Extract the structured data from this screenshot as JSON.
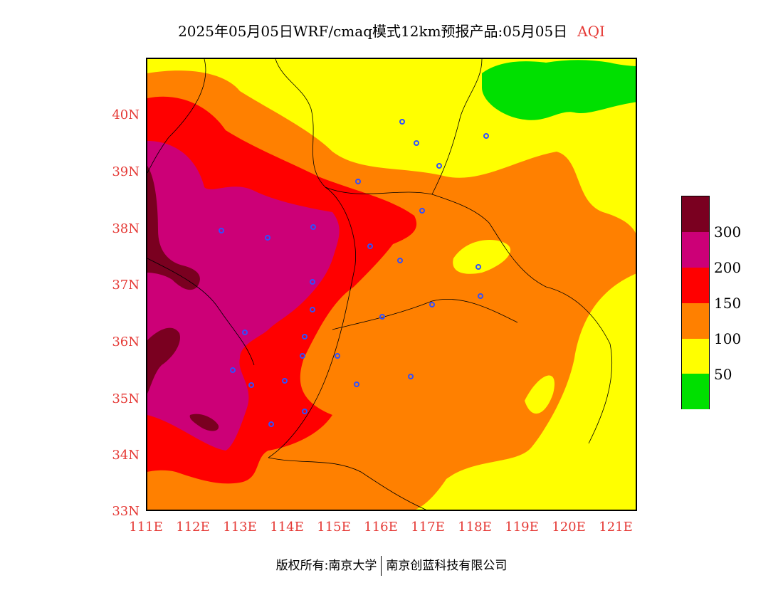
{
  "title": {
    "text": "2025年05月05日WRF/cmaq模式12km预报产品:05月05日",
    "variable": "AQI"
  },
  "axes": {
    "lat_labels": [
      "40N",
      "39N",
      "38N",
      "37N",
      "36N",
      "35N",
      "34N",
      "33N"
    ],
    "lon_labels": [
      "111E",
      "112E",
      "113E",
      "114E",
      "115E",
      "116E",
      "117E",
      "118E",
      "119E",
      "120E",
      "121E"
    ]
  },
  "legend": {
    "labels": [
      "300",
      "200",
      "150",
      "100",
      "50"
    ],
    "colors": [
      "#7a0020",
      "#cc0077",
      "#ff0000",
      "#ff8000",
      "#ffff00",
      "#00e000"
    ]
  },
  "footer": {
    "left": "版权所有:南京大学",
    "right": "南京创蓝科技有限公司"
  },
  "colors": {
    "maroon": "#7a0020",
    "purple": "#cc0077",
    "red": "#ff0000",
    "orange": "#ff8000",
    "yellow": "#ffff00",
    "green": "#00e000",
    "label_red": "#e53935",
    "station_blue": "#3050ff"
  }
}
